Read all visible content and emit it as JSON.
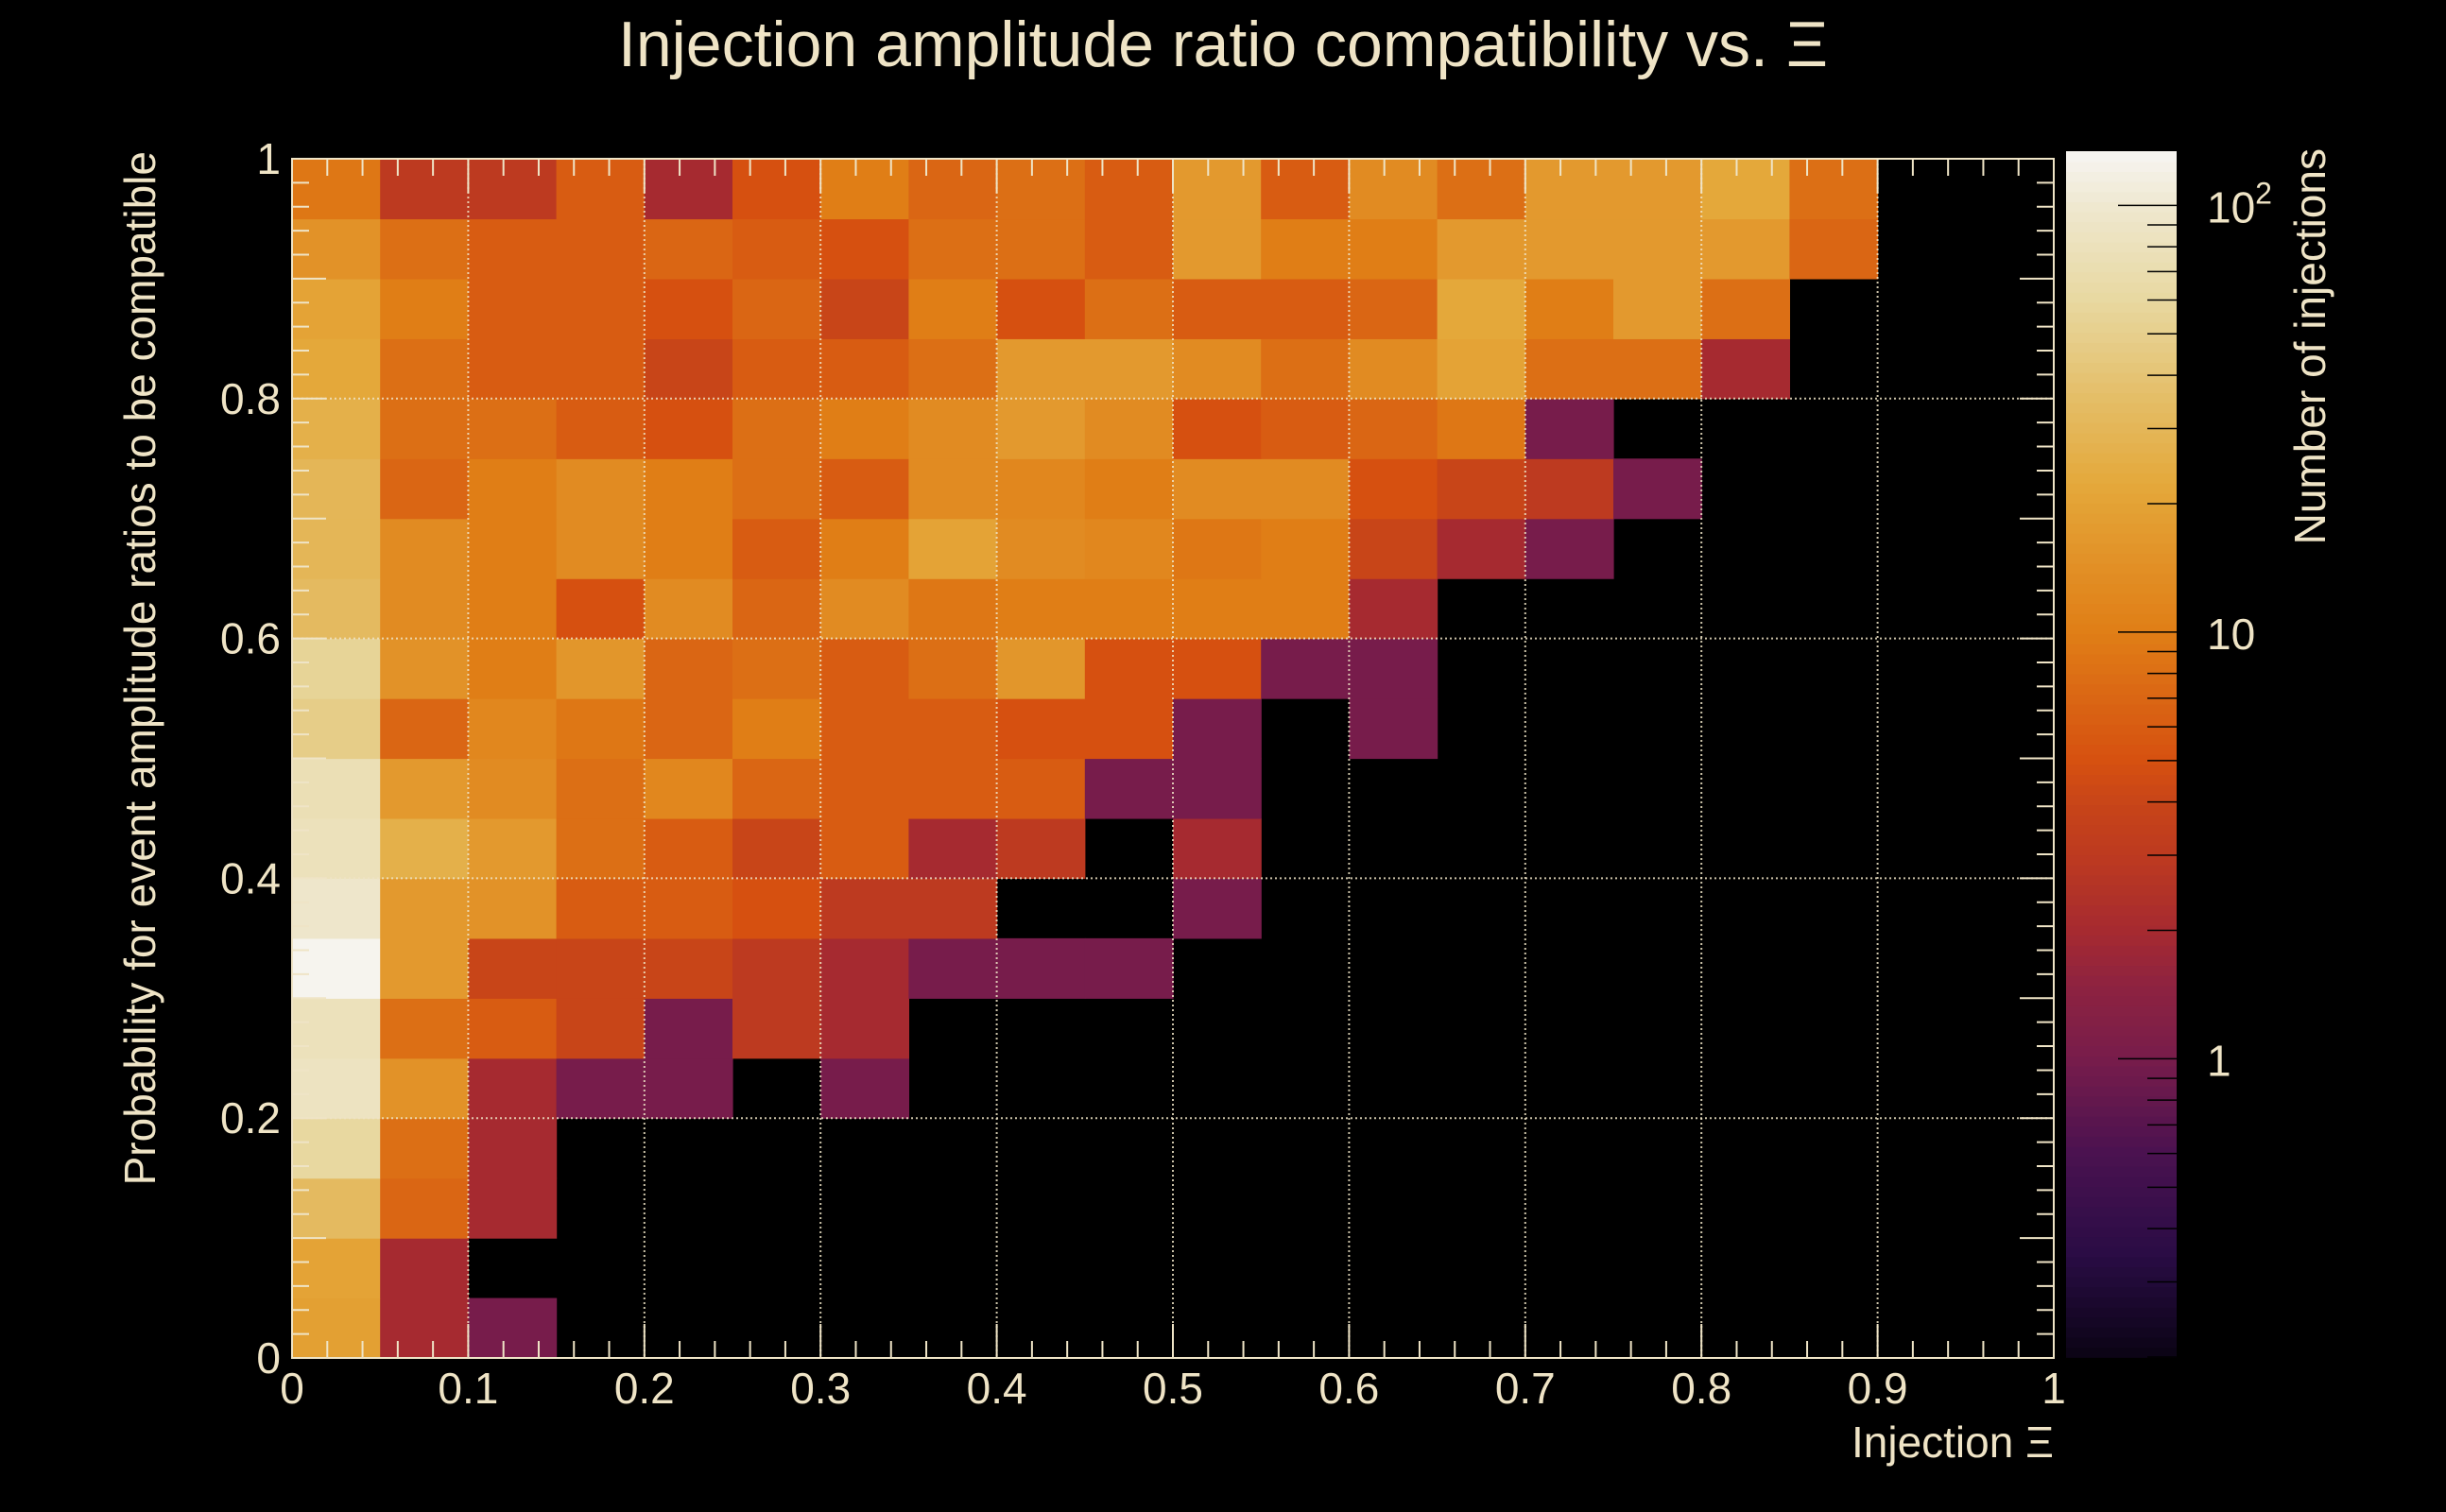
{
  "chart_data": {
    "type": "heatmap",
    "title": "Injection amplitude ratio compatibility vs.  Ξ",
    "xlabel": "Injection Ξ",
    "ylabel": "Probability for event amplitude ratios to be compatible",
    "zlabel": "Number of injections",
    "xlim": [
      0,
      1
    ],
    "ylim": [
      0,
      1
    ],
    "zlim": [
      0.2,
      134
    ],
    "zscale": "log",
    "grid": true,
    "x_bins": 20,
    "y_bins": 20,
    "x_ticks": [
      "0",
      "0.1",
      "0.2",
      "0.3",
      "0.4",
      "0.5",
      "0.6",
      "0.7",
      "0.8",
      "0.9",
      "1"
    ],
    "y_ticks": [
      "0",
      "0.2",
      "0.4",
      "0.6",
      "0.8",
      "1"
    ],
    "z_ticks": [
      {
        "value": 1,
        "base": "1",
        "exp": ""
      },
      {
        "value": 10,
        "base": "10",
        "exp": ""
      },
      {
        "value": 100,
        "base": "10",
        "exp": "2"
      }
    ],
    "z_rows_bottom_to_top": [
      [
        19,
        2,
        1,
        0,
        0,
        0,
        0,
        0,
        0,
        0,
        0,
        0,
        0,
        0,
        0,
        0,
        0,
        0,
        0,
        0
      ],
      [
        20,
        2,
        0,
        0,
        0,
        0,
        0,
        0,
        0,
        0,
        0,
        0,
        0,
        0,
        0,
        0,
        0,
        0,
        0,
        0
      ],
      [
        33,
        7,
        2,
        0,
        0,
        0,
        0,
        0,
        0,
        0,
        0,
        0,
        0,
        0,
        0,
        0,
        0,
        0,
        0,
        0
      ],
      [
        60,
        8,
        2,
        0,
        0,
        0,
        0,
        0,
        0,
        0,
        0,
        0,
        0,
        0,
        0,
        0,
        0,
        0,
        0,
        0
      ],
      [
        85,
        15,
        2,
        1,
        1,
        0,
        1,
        0,
        0,
        0,
        0,
        0,
        0,
        0,
        0,
        0,
        0,
        0,
        0,
        0
      ],
      [
        80,
        8,
        6,
        4,
        1,
        3,
        2,
        0,
        0,
        0,
        0,
        0,
        0,
        0,
        0,
        0,
        0,
        0,
        0,
        0
      ],
      [
        130,
        17,
        4,
        4,
        4,
        3,
        2,
        1,
        1,
        1,
        0,
        0,
        0,
        0,
        0,
        0,
        0,
        0,
        0,
        0
      ],
      [
        95,
        17,
        15,
        6,
        6,
        5,
        3,
        3,
        0,
        0,
        1,
        0,
        0,
        0,
        0,
        0,
        0,
        0,
        0,
        0
      ],
      [
        80,
        26,
        17,
        8,
        6,
        4,
        6,
        2,
        3,
        0,
        2,
        0,
        0,
        0,
        0,
        0,
        0,
        0,
        0,
        0
      ],
      [
        75,
        17,
        13,
        8,
        12,
        7,
        6,
        6,
        6,
        1,
        1,
        0,
        0,
        0,
        0,
        0,
        0,
        0,
        0,
        0
      ],
      [
        48,
        7,
        12,
        9,
        7,
        10,
        6,
        6,
        5,
        5,
        1,
        0,
        1,
        0,
        0,
        0,
        0,
        0,
        0,
        0
      ],
      [
        55,
        15,
        10,
        16,
        7,
        8,
        6,
        8,
        16,
        5,
        5,
        1,
        1,
        0,
        0,
        0,
        0,
        0,
        0,
        0
      ],
      [
        33,
        13,
        10,
        5,
        13,
        7,
        13,
        9,
        10,
        10,
        10,
        10,
        2,
        0,
        0,
        0,
        0,
        0,
        0,
        0
      ],
      [
        30,
        13,
        10,
        13,
        10,
        6,
        10,
        20,
        13,
        12,
        9,
        10,
        4,
        2,
        1,
        0,
        0,
        0,
        0,
        0
      ],
      [
        30,
        7,
        10,
        13,
        10,
        8,
        6,
        13,
        12,
        10,
        13,
        13,
        5,
        4,
        3,
        1,
        0,
        0,
        0,
        0
      ],
      [
        26,
        8,
        8,
        6,
        5,
        8,
        10,
        13,
        17,
        13,
        5,
        6,
        7,
        9,
        1,
        0,
        0,
        0,
        0,
        0
      ],
      [
        22,
        8,
        6,
        6,
        4,
        6,
        6,
        8,
        17,
        17,
        13,
        8,
        13,
        20,
        8,
        8,
        2,
        0,
        0,
        0
      ],
      [
        20,
        10,
        6,
        6,
        5,
        7,
        4,
        10,
        5,
        8,
        6,
        6,
        7,
        22,
        10,
        17,
        8,
        0,
        0,
        0
      ],
      [
        15,
        8,
        6,
        6,
        7,
        6,
        5,
        8,
        8,
        6,
        17,
        10,
        10,
        17,
        17,
        17,
        17,
        7,
        0,
        0
      ],
      [
        9,
        3,
        3,
        6,
        2,
        5,
        10,
        7,
        8,
        6,
        17,
        6,
        13,
        8,
        17,
        17,
        22,
        8,
        0,
        0
      ]
    ],
    "colormap": [
      {
        "value": 0.2,
        "color": "#0a0414"
      },
      {
        "value": 0.35,
        "color": "#2a0c45"
      },
      {
        "value": 0.6,
        "color": "#4a1250"
      },
      {
        "value": 1,
        "color": "#771c4b"
      },
      {
        "value": 1.5,
        "color": "#8e2340"
      },
      {
        "value": 2,
        "color": "#a62a30"
      },
      {
        "value": 3,
        "color": "#bd3a20"
      },
      {
        "value": 4,
        "color": "#c84518"
      },
      {
        "value": 5,
        "color": "#d65010"
      },
      {
        "value": 7,
        "color": "#da6614"
      },
      {
        "value": 10,
        "color": "#e07e16"
      },
      {
        "value": 15,
        "color": "#e29228"
      },
      {
        "value": 22,
        "color": "#e4a83a"
      },
      {
        "value": 35,
        "color": "#e4bd66"
      },
      {
        "value": 60,
        "color": "#e8d8a0"
      },
      {
        "value": 100,
        "color": "#efe8d0"
      },
      {
        "value": 134,
        "color": "#f7f5f2"
      }
    ],
    "colors": {
      "background": "#000000",
      "foreground": "#efe4c6"
    }
  }
}
